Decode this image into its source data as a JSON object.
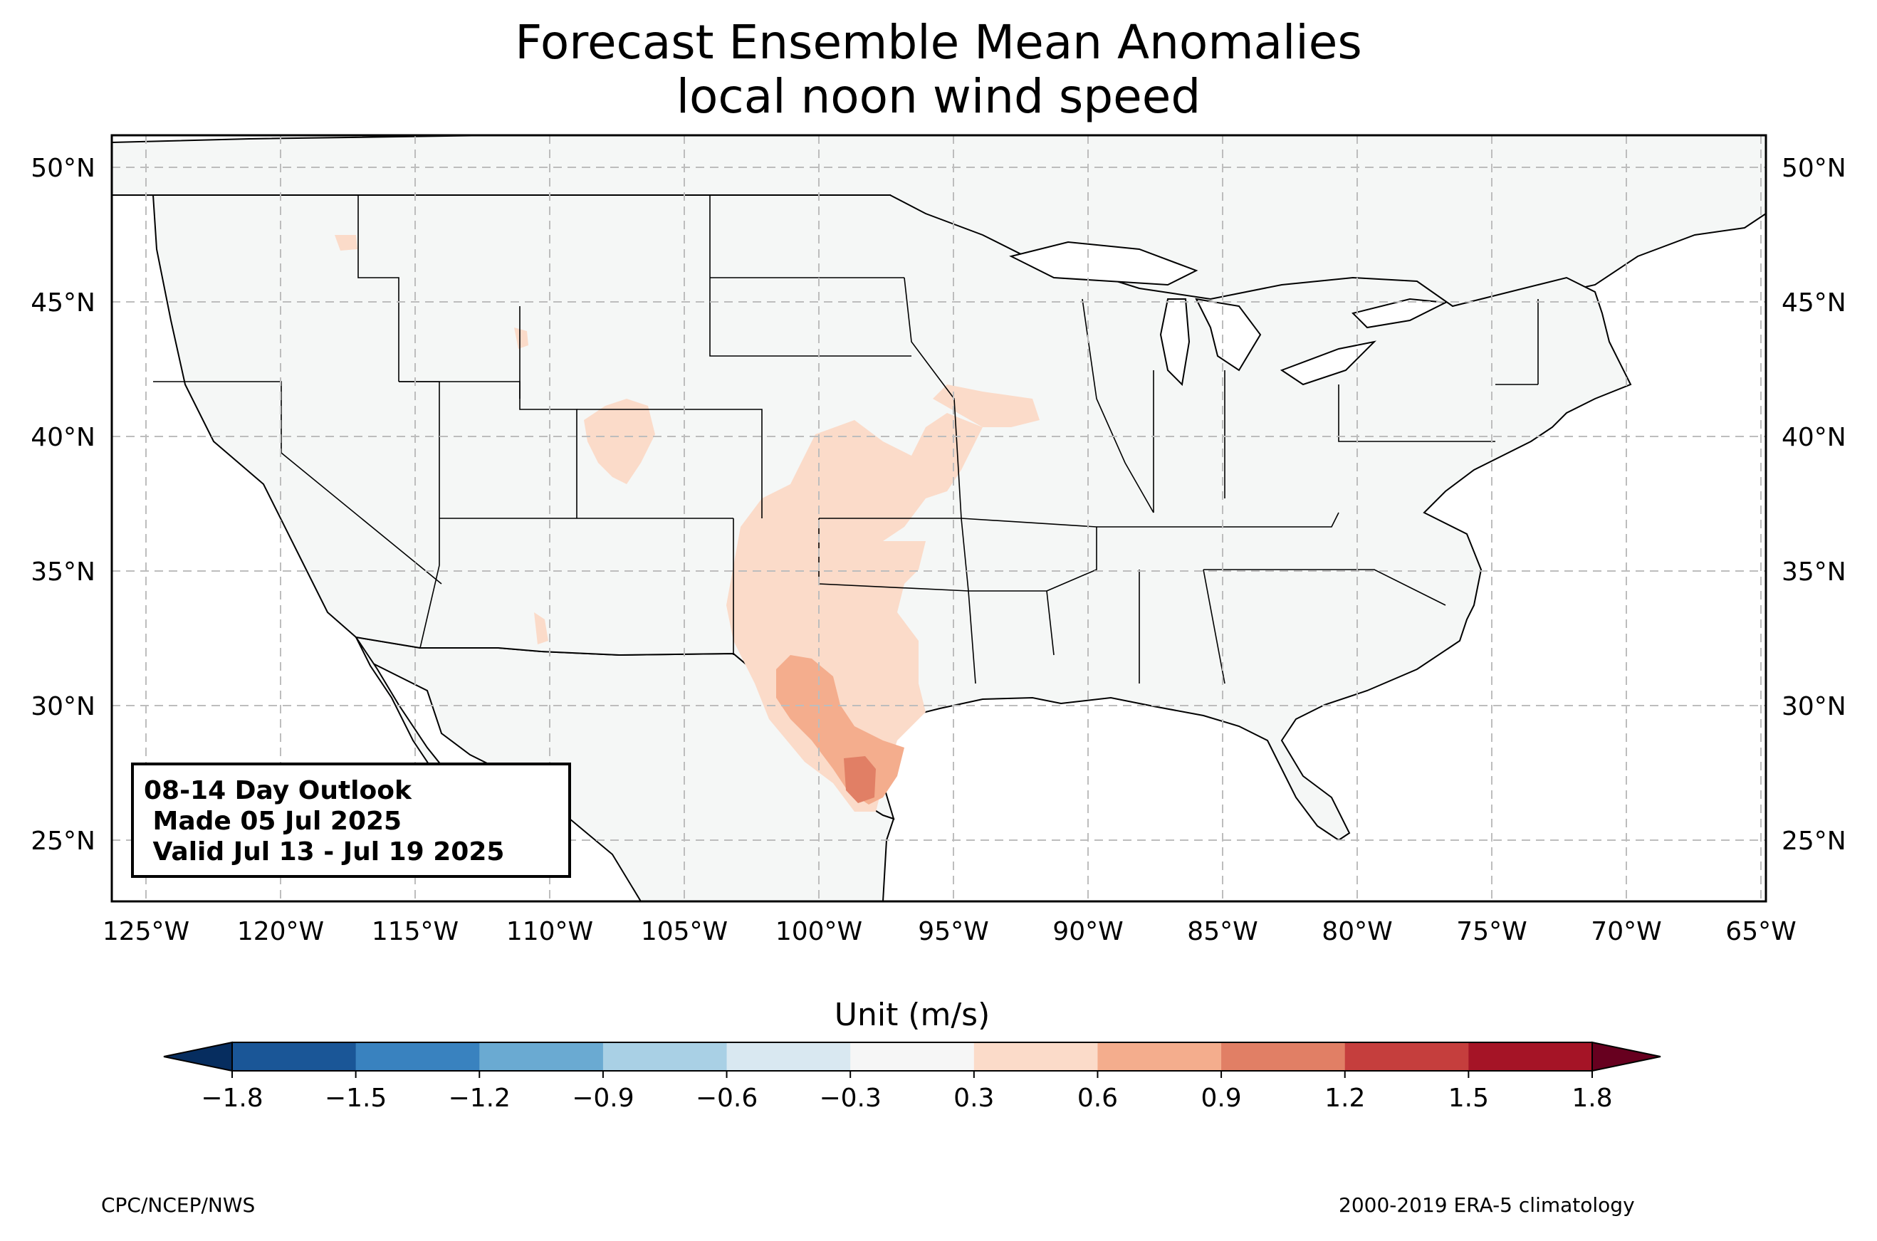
{
  "title": {
    "line1": "Forecast Ensemble Mean Anomalies",
    "line2": "local noon wind speed"
  },
  "info_box": {
    "line1": "08-14 Day Outlook",
    "line2": " Made 05 Jul 2025",
    "line3": " Valid Jul 13 - Jul 19 2025"
  },
  "axes": {
    "lat_labels": [
      "50°N",
      "45°N",
      "40°N",
      "35°N",
      "30°N",
      "25°N"
    ],
    "lon_labels": [
      "125°W",
      "120°W",
      "115°W",
      "110°W",
      "105°W",
      "100°W",
      "95°W",
      "90°W",
      "85°W",
      "80°W",
      "75°W",
      "70°W",
      "65°W"
    ],
    "lat_range": [
      22.8,
      51.2
    ],
    "lon_range": [
      -126.3,
      -64.9
    ],
    "grid": true
  },
  "colorbar": {
    "unit_label": "Unit (m/s)",
    "ticks": [
      "−1.8",
      "−1.5",
      "−1.2",
      "−0.9",
      "−0.6",
      "−0.3",
      "0.3",
      "0.6",
      "0.9",
      "1.2",
      "1.5",
      "1.8"
    ],
    "colors": [
      "#1a5697",
      "#3982bf",
      "#6aaad2",
      "#a9d0e5",
      "#d9e8f1",
      "#f6f6f6",
      "#fbdbc9",
      "#f4ad8d",
      "#e17f65",
      "#c53e3d",
      "#a51426"
    ],
    "under_color": "#062d5f",
    "over_color": "#67001f"
  },
  "map_colors": {
    "land": "#f5f7f6",
    "anomaly_03_06": "#fbdbc9",
    "anomaly_06_09": "#f4ad8d",
    "anomaly_09_12": "#e17f65"
  },
  "footer": {
    "left": "CPC/NCEP/NWS",
    "right": "2000-2019 ERA-5 climatology"
  }
}
